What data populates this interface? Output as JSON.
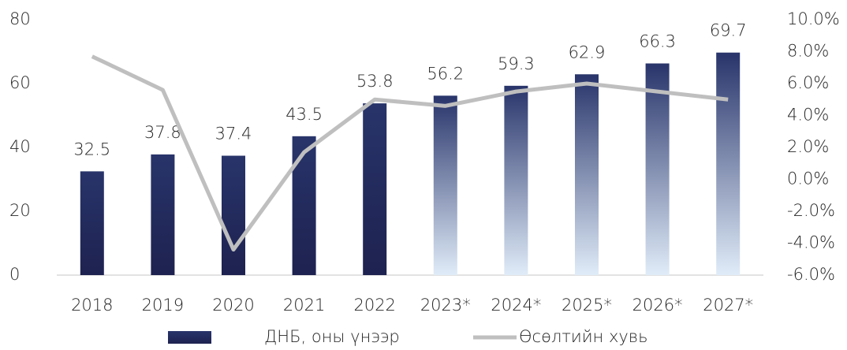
{
  "chart_data": {
    "type": "bar",
    "categories": [
      "2018",
      "2019",
      "2020",
      "2021",
      "2022",
      "2023*",
      "2024*",
      "2025*",
      "2026*",
      "2027*"
    ],
    "series": [
      {
        "name": "ДНБ, оны үнээр",
        "type": "bar",
        "color": "#28346a",
        "bottom_colors": [
          "#1e2250",
          "#1e2250",
          "#1e2250",
          "#1e2250",
          "#1e2250",
          "#e0ecf8",
          "#e0ecf8",
          "#e0ecf8",
          "#e0ecf8",
          "#e0ecf8"
        ],
        "values": [
          32.5,
          37.8,
          37.4,
          43.5,
          53.8,
          56.2,
          59.3,
          62.9,
          66.3,
          69.7
        ]
      },
      {
        "name": "Өсөлтийн хувь",
        "type": "line",
        "axis": "y2",
        "color": "#bfbfbf",
        "values": [
          7.7,
          5.6,
          -4.4,
          1.7,
          5.0,
          4.6,
          5.5,
          6.0,
          5.5,
          5.0
        ]
      }
    ],
    "ylim": [
      0,
      80
    ],
    "yticks": [
      0,
      20,
      40,
      60,
      80
    ],
    "y2lim": [
      -6,
      10
    ],
    "y2ticks": [
      {
        "value": -6,
        "label": "-6.0%"
      },
      {
        "value": -4,
        "label": "-4.0%"
      },
      {
        "value": -2,
        "label": "-2.0%"
      },
      {
        "value": 0,
        "label": "0.0%"
      },
      {
        "value": 2,
        "label": "2.0%"
      },
      {
        "value": 4,
        "label": "4.0%"
      },
      {
        "value": 6,
        "label": "6.0%"
      },
      {
        "value": 8,
        "label": "8.0%"
      },
      {
        "value": 10,
        "label": "10.0%"
      }
    ],
    "legend": "bottom"
  }
}
